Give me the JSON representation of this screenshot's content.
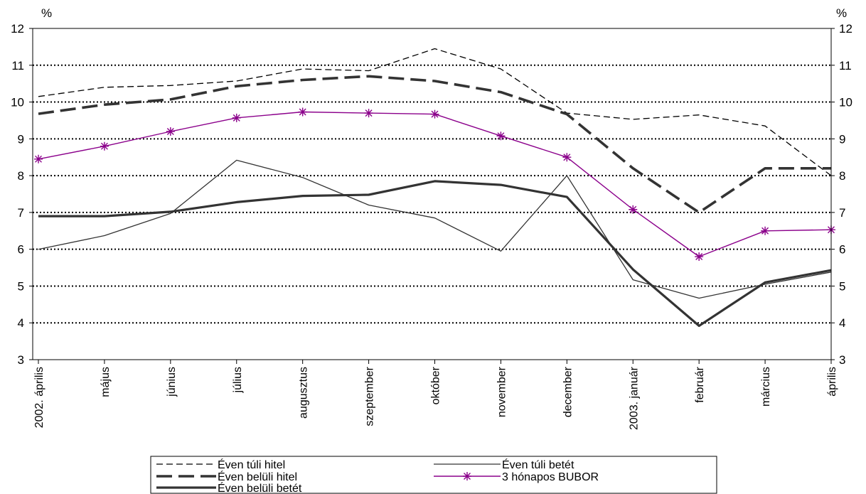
{
  "chart_data": {
    "type": "line",
    "y_unit_left": "%",
    "y_unit_right": "%",
    "ylim": [
      3,
      12
    ],
    "yticks": [
      "3",
      "4",
      "5",
      "6",
      "7",
      "8",
      "9",
      "10",
      "11",
      "12"
    ],
    "grid": "horizontal dotted",
    "legend_position": "bottom",
    "categories": [
      "2002. április",
      "május",
      "június",
      "július",
      "augusztus",
      "szeptember",
      "október",
      "november",
      "december",
      "2003. január",
      "február",
      "március",
      "április"
    ],
    "series": [
      {
        "name": "Éven túli hitel",
        "style": "thin-dashed",
        "color": "#000000",
        "values": [
          10.15,
          10.4,
          10.45,
          10.57,
          10.9,
          10.85,
          11.45,
          10.9,
          9.7,
          9.53,
          9.65,
          9.35,
          8.0
        ]
      },
      {
        "name": "Éven belüli hitel",
        "style": "thick-dashed",
        "color": "#333333",
        "values": [
          9.68,
          9.93,
          10.07,
          10.43,
          10.6,
          10.7,
          10.57,
          10.27,
          9.67,
          8.2,
          7.0,
          8.2,
          8.2
        ]
      },
      {
        "name": "Éven belüli betét",
        "style": "thick-solid",
        "color": "#333333",
        "values": [
          6.9,
          6.9,
          7.02,
          7.28,
          7.45,
          7.48,
          7.85,
          7.75,
          7.42,
          5.45,
          3.92,
          5.1,
          5.43
        ]
      },
      {
        "name": "Éven túli betét",
        "style": "thin-solid",
        "color": "#333333",
        "values": [
          6.0,
          6.37,
          6.97,
          8.42,
          7.95,
          7.2,
          6.85,
          5.95,
          8.0,
          5.17,
          4.67,
          5.05,
          5.38
        ]
      },
      {
        "name": "3 hónapos BUBOR",
        "style": "solid-star-markers",
        "color": "#8B008B",
        "values": [
          8.45,
          8.8,
          9.2,
          9.57,
          9.73,
          9.7,
          9.67,
          9.08,
          8.5,
          7.08,
          5.8,
          6.5,
          6.53
        ]
      }
    ],
    "legend": [
      {
        "label": "Éven túli hitel",
        "series": 0
      },
      {
        "label": "Éven túli betét",
        "series": 3
      },
      {
        "label": "Éven belüli hitel",
        "series": 1
      },
      {
        "label": "3 hónapos BUBOR",
        "series": 4
      },
      {
        "label": "Éven belüli betét",
        "series": 2
      }
    ]
  }
}
